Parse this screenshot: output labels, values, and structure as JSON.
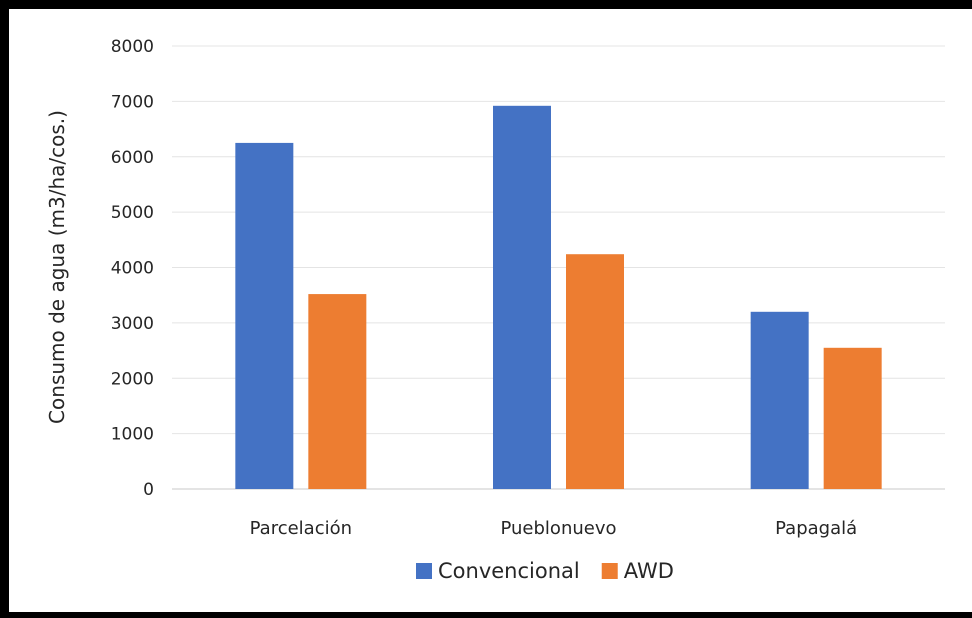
{
  "chart_data": {
    "type": "bar",
    "title": "",
    "xlabel": "",
    "ylabel": "Consumo de agua (m3/ha/cos.)",
    "ylim": [
      0,
      8000
    ],
    "yticks": [
      "0",
      "1000",
      "2000",
      "3000",
      "4000",
      "5000",
      "6000",
      "7000",
      "8000"
    ],
    "categories": [
      "Parcelación",
      "Pueblonuevo",
      "Papagalá"
    ],
    "series": [
      {
        "name": "Convencional",
        "color": "#4472C4",
        "values": [
          6250,
          6920,
          3200
        ]
      },
      {
        "name": "AWD",
        "color": "#ED7D31",
        "values": [
          3520,
          4240,
          2550
        ]
      }
    ],
    "grid": true,
    "legend_position": "bottom"
  }
}
